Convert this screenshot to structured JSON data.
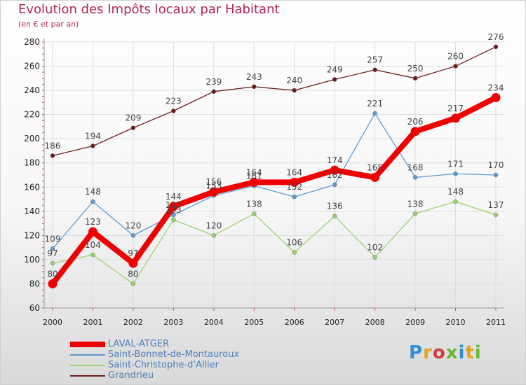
{
  "title": "Evolution des Impôts locaux par Habitant",
  "subtitle": "(en € et par an)",
  "logo": {
    "text": "Proxiti",
    "letters": [
      "P",
      "r",
      "o",
      "x",
      "i",
      "t",
      "i"
    ]
  },
  "chart_data": {
    "type": "line",
    "x": [
      "2000",
      "2001",
      "2002",
      "2003",
      "2004",
      "2005",
      "2006",
      "2007",
      "2008",
      "2009",
      "2010",
      "2011"
    ],
    "ylim": [
      60,
      280
    ],
    "yticks": [
      60,
      80,
      100,
      120,
      140,
      160,
      180,
      200,
      220,
      240,
      260,
      280
    ],
    "grid": true,
    "legend_position": "bottom-left",
    "series": [
      {
        "name": "Grandrieu",
        "color": "#6b1a1a",
        "values": [
          186,
          194,
          209,
          223,
          239,
          243,
          240,
          249,
          257,
          250,
          260,
          276
        ]
      },
      {
        "name": "Saint-Christophe-d'Allier",
        "color": "#9bd26f",
        "values": [
          97,
          104,
          80,
          133,
          120,
          138,
          106,
          136,
          102,
          138,
          148,
          137
        ]
      },
      {
        "name": "Saint-Bonnet-de-Montauroux",
        "color": "#5b9bd5",
        "values": [
          109,
          148,
          120,
          137,
          153,
          161,
          152,
          162,
          221,
          168,
          171,
          170
        ]
      },
      {
        "name": "LAVAL-ATGER",
        "color": "#ee0000",
        "values": [
          80,
          123,
          97,
          144,
          156,
          164,
          164,
          174,
          168,
          206,
          217,
          234
        ]
      }
    ],
    "legend_order": [
      "LAVAL-ATGER",
      "Saint-Bonnet-de-Montauroux",
      "Saint-Christophe-d'Allier",
      "Grandrieu"
    ]
  }
}
